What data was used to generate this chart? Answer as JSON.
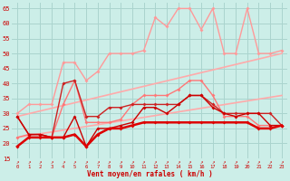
{
  "xlabel": "Vent moyen/en rafales ( km/h )",
  "bg_color": "#cceee8",
  "grid_color": "#aad4ce",
  "xlim": [
    -0.5,
    23.5
  ],
  "ylim": [
    15,
    67
  ],
  "yticks": [
    15,
    20,
    25,
    30,
    35,
    40,
    45,
    50,
    55,
    60,
    65
  ],
  "xticks": [
    0,
    1,
    2,
    3,
    4,
    5,
    6,
    7,
    8,
    9,
    10,
    11,
    12,
    13,
    14,
    15,
    16,
    17,
    18,
    19,
    20,
    21,
    22,
    23
  ],
  "series": [
    {
      "x": [
        0,
        1,
        2,
        3,
        4,
        5,
        6,
        7,
        8,
        9,
        10,
        11,
        12,
        13,
        14,
        15,
        16,
        17,
        18,
        19,
        20,
        21,
        22,
        23
      ],
      "y": [
        19,
        22,
        22,
        22,
        22,
        23,
        19,
        23,
        25,
        25,
        26,
        27,
        27,
        27,
        27,
        27,
        27,
        27,
        27,
        27,
        27,
        25,
        25,
        26
      ],
      "color": "#dd0000",
      "lw": 1.8,
      "marker": "D",
      "ms": 2.0,
      "zorder": 6
    },
    {
      "x": [
        0,
        1,
        2,
        3,
        4,
        5,
        6,
        7,
        8,
        9,
        10,
        11,
        12,
        13,
        14,
        15,
        16,
        17,
        18,
        19,
        20,
        21,
        22,
        23
      ],
      "y": [
        29,
        23,
        23,
        22,
        22,
        29,
        19,
        25,
        25,
        26,
        27,
        32,
        32,
        30,
        33,
        36,
        36,
        32,
        30,
        29,
        30,
        30,
        26,
        26
      ],
      "color": "#cc0000",
      "lw": 1.0,
      "marker": "D",
      "ms": 2.0,
      "zorder": 5
    },
    {
      "x": [
        0,
        1,
        2,
        3,
        4,
        5,
        6,
        7,
        8,
        9,
        10,
        11,
        12,
        13,
        14,
        15,
        16,
        17,
        18,
        19,
        20,
        21,
        22,
        23
      ],
      "y": [
        29,
        23,
        23,
        22,
        40,
        41,
        29,
        29,
        32,
        32,
        33,
        33,
        33,
        33,
        33,
        36,
        36,
        33,
        30,
        30,
        30,
        30,
        30,
        26
      ],
      "color": "#cc2222",
      "lw": 1.0,
      "marker": "D",
      "ms": 2.0,
      "zorder": 4
    },
    {
      "x": [
        0,
        23
      ],
      "y": [
        29,
        50
      ],
      "color": "#ffaaaa",
      "lw": 1.2,
      "marker": null,
      "ms": 0,
      "zorder": 2
    },
    {
      "x": [
        0,
        23
      ],
      "y": [
        22,
        36
      ],
      "color": "#ffaaaa",
      "lw": 1.2,
      "marker": null,
      "ms": 0,
      "zorder": 2
    },
    {
      "x": [
        0,
        1,
        2,
        3,
        4,
        5,
        6,
        7,
        8,
        9,
        10,
        11,
        12,
        13,
        14,
        15,
        16,
        17,
        18,
        19,
        20,
        21,
        22,
        23
      ],
      "y": [
        30,
        33,
        33,
        33,
        47,
        47,
        41,
        44,
        50,
        50,
        50,
        51,
        62,
        59,
        65,
        65,
        58,
        65,
        50,
        50,
        65,
        50,
        50,
        51
      ],
      "color": "#ff9999",
      "lw": 1.0,
      "marker": "D",
      "ms": 2.0,
      "zorder": 3
    },
    {
      "x": [
        0,
        1,
        2,
        3,
        4,
        5,
        6,
        7,
        8,
        9,
        10,
        11,
        12,
        13,
        14,
        15,
        16,
        17,
        18,
        19,
        20,
        21,
        22,
        23
      ],
      "y": [
        22,
        23,
        23,
        22,
        33,
        41,
        27,
        27,
        27,
        28,
        33,
        36,
        36,
        36,
        38,
        41,
        41,
        36,
        29,
        29,
        29,
        26,
        26,
        26
      ],
      "color": "#ff7777",
      "lw": 1.0,
      "marker": "D",
      "ms": 2.0,
      "zorder": 3
    }
  ]
}
